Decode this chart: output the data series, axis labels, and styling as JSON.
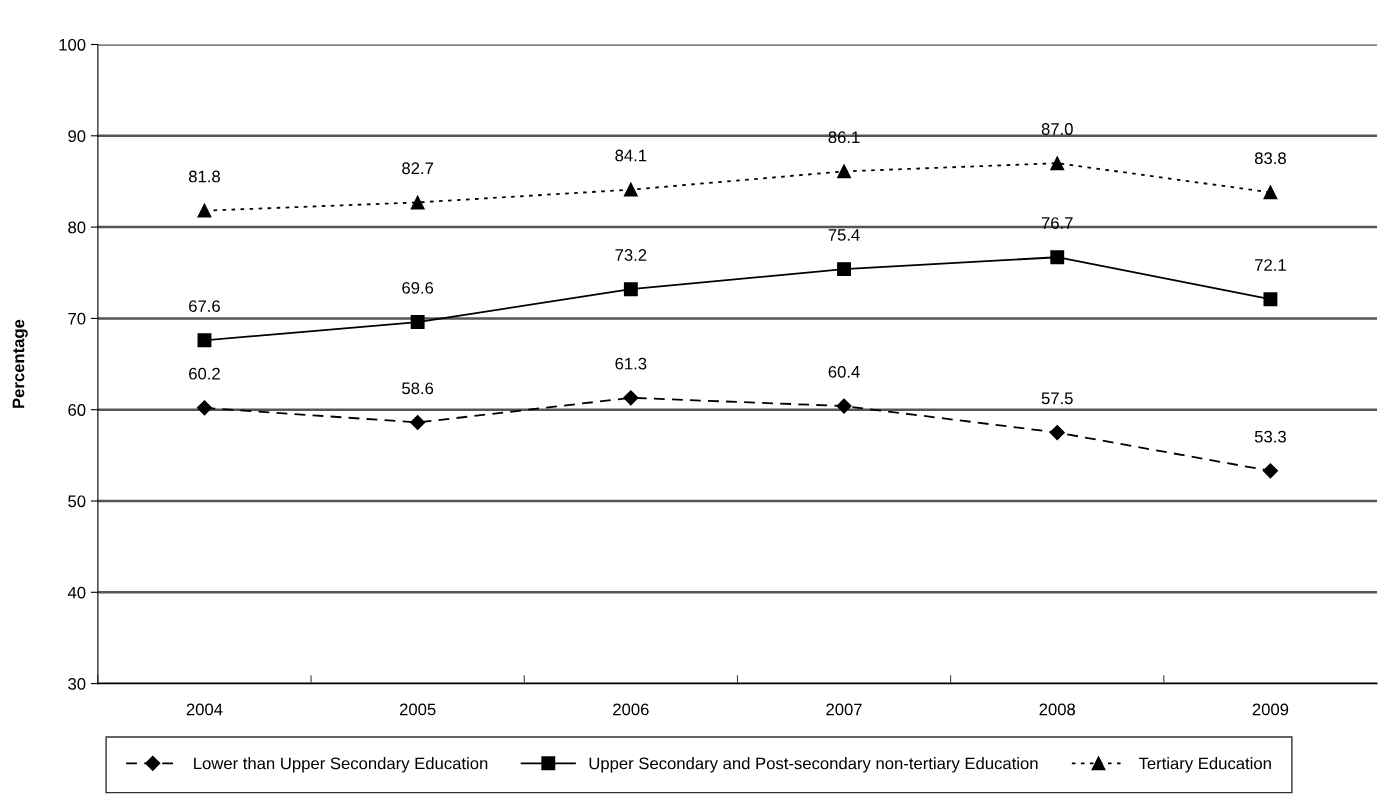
{
  "chart_data": {
    "type": "line",
    "ylabel": "Percentage",
    "categories": [
      "2004",
      "2005",
      "2006",
      "2007",
      "2008",
      "2009"
    ],
    "series": [
      {
        "name": "Lower than Upper Secondary Education",
        "color": "#000000",
        "marker": "diamond",
        "line_style": "dashed",
        "values": [
          60.2,
          58.6,
          61.3,
          60.4,
          57.5,
          53.3
        ],
        "value_labels": [
          "60.2",
          "58.6",
          "61.3",
          "60.4",
          "57.5",
          "53.3"
        ]
      },
      {
        "name": "Upper Secondary and Post-secondary non-tertiary Education",
        "color": "#000000",
        "marker": "square",
        "line_style": "solid",
        "values": [
          67.6,
          69.6,
          73.2,
          75.4,
          76.7,
          72.1
        ],
        "value_labels": [
          "67.6",
          "69.6",
          "73.2",
          "75.4",
          "76.7",
          "72.1"
        ]
      },
      {
        "name": "Tertiary Education",
        "color": "#000000",
        "marker": "triangle",
        "line_style": "dotted",
        "values": [
          81.8,
          82.7,
          84.1,
          86.1,
          87.0,
          83.8
        ],
        "value_labels": [
          "81.8",
          "82.7",
          "84.1",
          "86.1",
          "87.0",
          "83.8"
        ]
      }
    ],
    "ylim": [
      30,
      100
    ],
    "yticks": [
      30,
      40,
      50,
      60,
      70,
      80,
      90,
      100
    ],
    "grid": "y",
    "legend": "bottom"
  }
}
